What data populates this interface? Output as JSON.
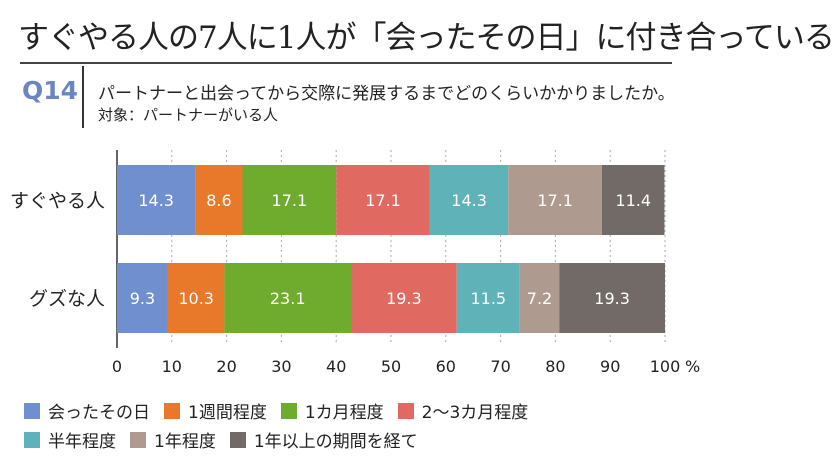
{
  "header": {
    "title": "すぐやる人の7人に1人が「会ったその日」に付き合っている",
    "question_no": "Q14",
    "question": "パートナーと出会ってから交際に発展するまでどのくらいかかりましたか。",
    "target": "対象：パートナーがいる人"
  },
  "chart_data": {
    "type": "bar",
    "orientation": "horizontal",
    "stacked": true,
    "categories": [
      "すぐやる人",
      "グズな人"
    ],
    "xlim": [
      0,
      100
    ],
    "xticks": [
      0,
      10,
      20,
      30,
      40,
      50,
      60,
      70,
      80,
      90,
      100
    ],
    "xunit": "%",
    "legend_position": "bottom",
    "series": [
      {
        "name": "会ったその日",
        "color": "#6f8fce",
        "values": [
          14.3,
          9.3
        ]
      },
      {
        "name": "1週間程度",
        "color": "#e8782a",
        "values": [
          8.6,
          10.3
        ]
      },
      {
        "name": "1カ月程度",
        "color": "#6fab2c",
        "values": [
          17.1,
          23.1
        ]
      },
      {
        "name": "2〜3カ月程度",
        "color": "#e06a62",
        "values": [
          17.1,
          19.3
        ]
      },
      {
        "name": "半年程度",
        "color": "#5fb3b8",
        "values": [
          14.3,
          11.5
        ]
      },
      {
        "name": "1年程度",
        "color": "#ae9a8f",
        "values": [
          17.1,
          7.2
        ]
      },
      {
        "name": "1年以上の期間を経て",
        "color": "#716a66",
        "values": [
          11.4,
          19.3
        ]
      }
    ]
  }
}
